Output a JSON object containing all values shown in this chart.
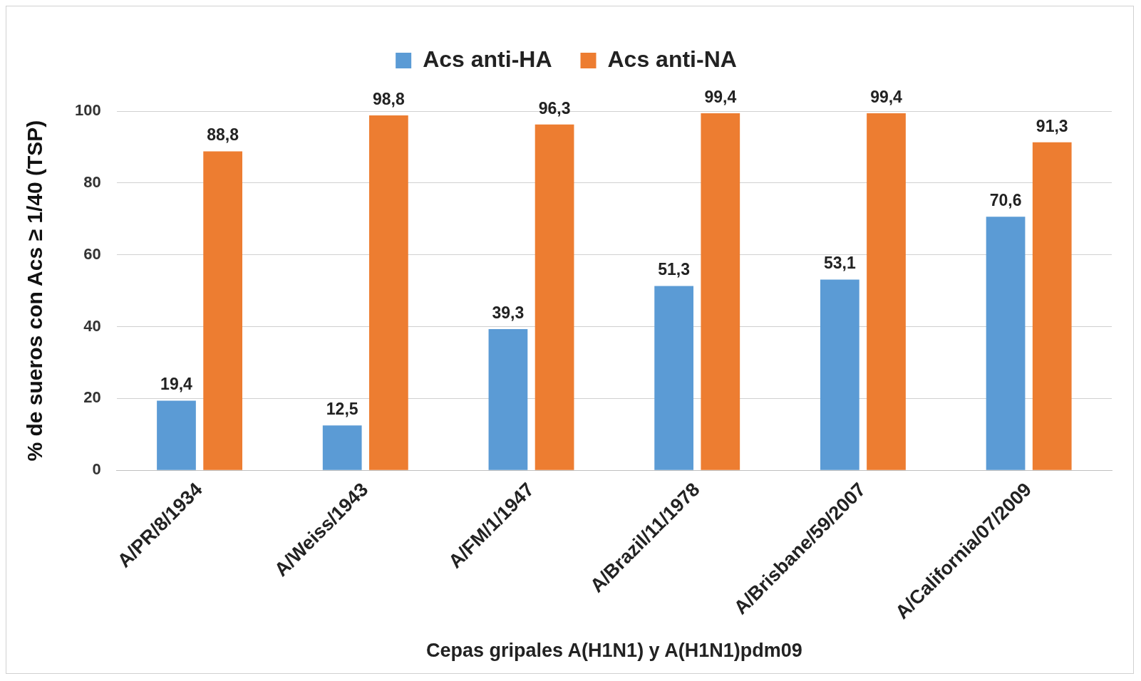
{
  "chart_data": {
    "type": "bar",
    "xlabel": "Cepas gripales A(H1N1) y A(H1N1)pdm09",
    "ylabel": "% de sueros con Acs ≥ 1/40 (TSP)",
    "categories": [
      "A/PR/8/1934",
      "A/Weiss/1943",
      "A/FM/1/1947",
      "A/Brazil/11/1978",
      "A/Brisbane/59/2007",
      "A/California/07/2009"
    ],
    "series": [
      {
        "name": "Acs anti-HA",
        "color": "#5b9bd5",
        "values": [
          19.4,
          12.5,
          39.3,
          51.3,
          53.1,
          70.6
        ],
        "value_labels": [
          "19,4",
          "12,5",
          "39,3",
          "51,3",
          "53,1",
          "70,6"
        ]
      },
      {
        "name": "Acs anti-NA",
        "color": "#ed7d31",
        "values": [
          88.8,
          98.8,
          96.3,
          99.4,
          99.4,
          91.3
        ],
        "value_labels": [
          "88,8",
          "98,8",
          "96,3",
          "99,4",
          "99,4",
          "91,3"
        ]
      }
    ],
    "ylim": [
      0,
      100
    ],
    "yticks": [
      0,
      20,
      40,
      60,
      80,
      100
    ],
    "grid": "y",
    "legend": "top"
  }
}
